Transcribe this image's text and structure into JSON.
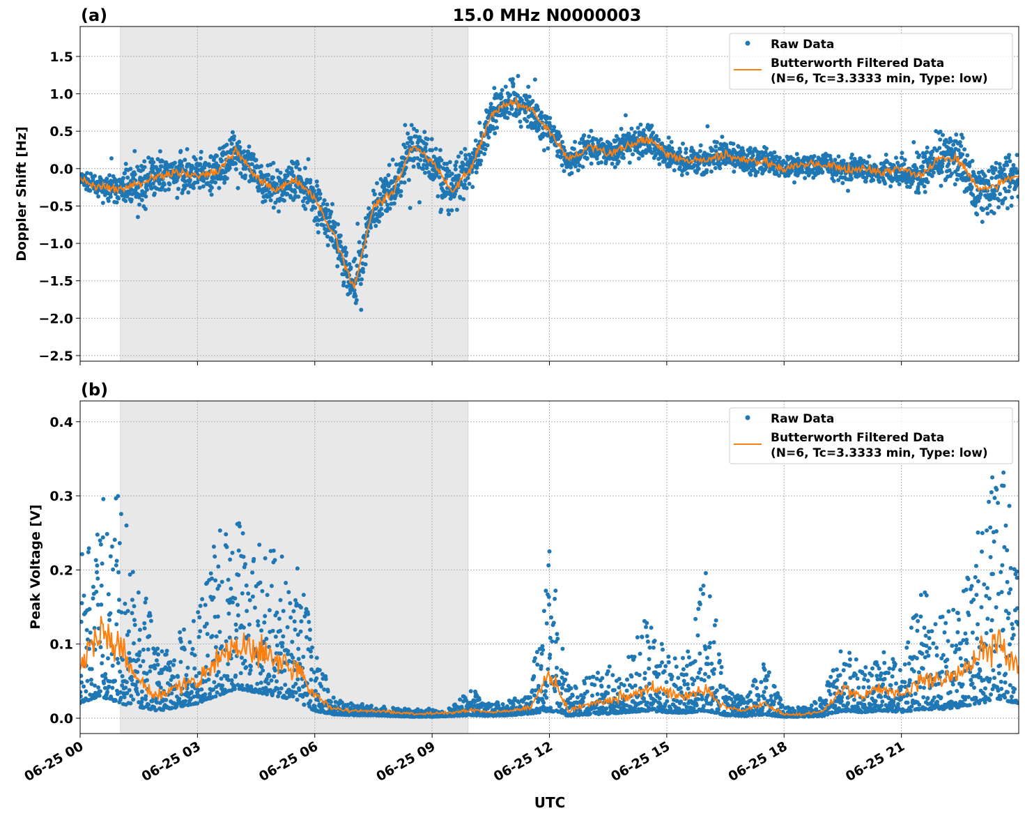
{
  "chart_data": [
    {
      "type": "scatter",
      "panel_label": "(a)",
      "title": "15.0 MHz N0000003",
      "xlabel": "",
      "ylabel": "Doppler Shift [Hz]",
      "xlim_hours": [
        0,
        24
      ],
      "ylim": [
        -2.575,
        1.9
      ],
      "yticks": [
        -2.5,
        -2.0,
        -1.5,
        -1.0,
        -0.5,
        0.0,
        0.5,
        1.0,
        1.5
      ],
      "ytick_labels": [
        "−2.5",
        "−2.0",
        "−1.5",
        "−1.0",
        "−0.5",
        "0.0",
        "0.5",
        "1.0",
        "1.5"
      ],
      "shaded_span_hours": [
        1.03,
        9.92
      ],
      "grid": true,
      "legend_placement": "top-right",
      "legend": [
        "Raw Data",
        "Butterworth Filtered Data\n(N=6, Tc=3.3333 min, Type: low)"
      ],
      "series": [
        {
          "name": "Raw Data",
          "kind": "scatter",
          "color": "#1f77b4",
          "x_hours": [
            0,
            0.5,
            1,
            1.5,
            2,
            2.5,
            3,
            3.5,
            4,
            4.5,
            5,
            5.5,
            6,
            6.5,
            7,
            7.5,
            8,
            8.5,
            9,
            9.5,
            10,
            10.5,
            11,
            11.5,
            12,
            12.5,
            13,
            13.5,
            14,
            14.5,
            15,
            15.5,
            16,
            16.5,
            17,
            17.5,
            18,
            18.5,
            19,
            19.5,
            20,
            20.5,
            21,
            21.5,
            22,
            22.5,
            23,
            23.5,
            24
          ],
          "center": [
            -0.15,
            -0.25,
            -0.28,
            -0.2,
            -0.1,
            -0.05,
            -0.1,
            -0.05,
            0.25,
            -0.1,
            -0.3,
            -0.15,
            -0.4,
            -0.9,
            -1.6,
            -0.5,
            -0.3,
            0.3,
            0.1,
            -0.3,
            0.0,
            0.7,
            0.9,
            0.8,
            0.5,
            0.1,
            0.3,
            0.2,
            0.3,
            0.4,
            0.2,
            0.1,
            0.1,
            0.2,
            0.1,
            0.1,
            0.0,
            0.05,
            0.05,
            0.0,
            0.0,
            -0.05,
            0.0,
            -0.1,
            0.15,
            0.1,
            -0.3,
            -0.2,
            -0.1
          ],
          "half_spread": [
            0.15,
            0.15,
            0.25,
            0.35,
            0.35,
            0.35,
            0.35,
            0.35,
            0.35,
            0.35,
            0.35,
            0.35,
            0.35,
            0.4,
            0.45,
            0.4,
            0.4,
            0.45,
            0.45,
            0.45,
            0.4,
            0.35,
            0.35,
            0.35,
            0.3,
            0.25,
            0.25,
            0.25,
            0.25,
            0.3,
            0.25,
            0.25,
            0.25,
            0.25,
            0.25,
            0.25,
            0.22,
            0.22,
            0.22,
            0.22,
            0.2,
            0.2,
            0.25,
            0.35,
            0.45,
            0.5,
            0.55,
            0.5,
            0.45
          ]
        },
        {
          "name": "Butterworth Filtered Data (N=6, Tc=3.3333 min, Type: low)",
          "kind": "line",
          "color": "#ff7f0e",
          "x_hours": [
            0,
            0.5,
            1,
            1.5,
            2,
            2.5,
            3,
            3.5,
            4,
            4.5,
            5,
            5.5,
            6,
            6.5,
            7,
            7.5,
            8,
            8.5,
            9,
            9.5,
            10,
            10.5,
            11,
            11.5,
            12,
            12.5,
            13,
            13.5,
            14,
            14.5,
            15,
            15.5,
            16,
            16.5,
            17,
            17.5,
            18,
            18.5,
            19,
            19.5,
            20,
            20.5,
            21,
            21.5,
            22,
            22.5,
            23,
            23.5,
            24
          ],
          "values": [
            -0.15,
            -0.25,
            -0.28,
            -0.2,
            -0.1,
            -0.05,
            -0.1,
            -0.05,
            0.25,
            -0.1,
            -0.3,
            -0.15,
            -0.4,
            -0.9,
            -1.6,
            -0.5,
            -0.3,
            0.3,
            0.1,
            -0.3,
            0.0,
            0.7,
            0.9,
            0.8,
            0.5,
            0.1,
            0.3,
            0.2,
            0.3,
            0.4,
            0.2,
            0.1,
            0.1,
            0.2,
            0.1,
            0.1,
            0.0,
            0.05,
            0.05,
            0.0,
            0.0,
            -0.05,
            0.0,
            -0.1,
            0.15,
            0.1,
            -0.3,
            -0.2,
            -0.1
          ]
        }
      ]
    },
    {
      "type": "scatter",
      "panel_label": "(b)",
      "title": "",
      "xlabel": "UTC",
      "ylabel": "Peak Voltage [V]",
      "xlim_hours": [
        0,
        24
      ],
      "ylim": [
        -0.0207,
        0.428
      ],
      "yticks": [
        0.0,
        0.1,
        0.2,
        0.3,
        0.4
      ],
      "ytick_labels": [
        "0.0",
        "0.1",
        "0.2",
        "0.3",
        "0.4"
      ],
      "xticks_hours": [
        0,
        3,
        6,
        9,
        12,
        15,
        18,
        21
      ],
      "xtick_labels": [
        "06-25 00",
        "06-25 03",
        "06-25 06",
        "06-25 09",
        "06-25 12",
        "06-25 15",
        "06-25 18",
        "06-25 21"
      ],
      "shaded_span_hours": [
        1.03,
        9.92
      ],
      "grid": true,
      "legend_placement": "top-right",
      "legend": [
        "Raw Data",
        "Butterworth Filtered Data\n(N=6, Tc=3.3333 min, Type: low)"
      ],
      "series": [
        {
          "name": "Raw Data",
          "kind": "scatter",
          "color": "#1f77b4",
          "x_hours": [
            0,
            0.5,
            1,
            1.5,
            2,
            2.5,
            3,
            3.5,
            4,
            4.5,
            5,
            5.5,
            6,
            6.5,
            7,
            7.5,
            8,
            8.5,
            9,
            9.5,
            10,
            10.5,
            11,
            11.5,
            12,
            12.5,
            13,
            13.5,
            14,
            14.5,
            15,
            15.5,
            16,
            16.5,
            17,
            17.5,
            18,
            18.5,
            19,
            19.5,
            20,
            20.5,
            21,
            21.5,
            22,
            22.5,
            23,
            23.5,
            24
          ],
          "low": [
            0.02,
            0.03,
            0.02,
            0.015,
            0.01,
            0.015,
            0.02,
            0.03,
            0.04,
            0.035,
            0.03,
            0.025,
            0.01,
            0.005,
            0.004,
            0.004,
            0.003,
            0.002,
            0.002,
            0.003,
            0.004,
            0.003,
            0.004,
            0.006,
            0.01,
            0.003,
            0.005,
            0.006,
            0.008,
            0.01,
            0.008,
            0.007,
            0.01,
            0.004,
            0.003,
            0.005,
            0.002,
            0.002,
            0.003,
            0.01,
            0.008,
            0.01,
            0.008,
            0.012,
            0.012,
            0.015,
            0.02,
            0.025,
            0.02
          ],
          "high": [
            0.22,
            0.3,
            0.33,
            0.2,
            0.1,
            0.12,
            0.14,
            0.25,
            0.29,
            0.24,
            0.24,
            0.22,
            0.1,
            0.025,
            0.02,
            0.018,
            0.015,
            0.012,
            0.013,
            0.015,
            0.04,
            0.02,
            0.025,
            0.035,
            0.24,
            0.04,
            0.06,
            0.07,
            0.08,
            0.14,
            0.09,
            0.08,
            0.24,
            0.04,
            0.03,
            0.08,
            0.015,
            0.015,
            0.03,
            0.11,
            0.07,
            0.09,
            0.08,
            0.18,
            0.14,
            0.16,
            0.28,
            0.4,
            0.2
          ]
        },
        {
          "name": "Butterworth Filtered Data (N=6, Tc=3.3333 min, Type: low)",
          "kind": "line",
          "color": "#ff7f0e",
          "x_hours": [
            0,
            0.5,
            1,
            1.5,
            2,
            2.5,
            3,
            3.5,
            4,
            4.5,
            5,
            5.5,
            6,
            6.5,
            7,
            7.5,
            8,
            8.5,
            9,
            9.5,
            10,
            10.5,
            11,
            11.5,
            12,
            12.5,
            13,
            13.5,
            14,
            14.5,
            15,
            15.5,
            16,
            16.5,
            17,
            17.5,
            18,
            18.5,
            19,
            19.5,
            20,
            20.5,
            21,
            21.5,
            22,
            22.5,
            23,
            23.5,
            24
          ],
          "values": [
            0.07,
            0.12,
            0.1,
            0.05,
            0.03,
            0.04,
            0.05,
            0.08,
            0.1,
            0.09,
            0.08,
            0.07,
            0.03,
            0.012,
            0.01,
            0.01,
            0.008,
            0.006,
            0.006,
            0.007,
            0.012,
            0.008,
            0.01,
            0.015,
            0.06,
            0.01,
            0.02,
            0.025,
            0.03,
            0.04,
            0.035,
            0.03,
            0.04,
            0.015,
            0.01,
            0.02,
            0.005,
            0.005,
            0.01,
            0.04,
            0.03,
            0.04,
            0.03,
            0.05,
            0.05,
            0.06,
            0.09,
            0.1,
            0.07
          ]
        }
      ]
    }
  ]
}
